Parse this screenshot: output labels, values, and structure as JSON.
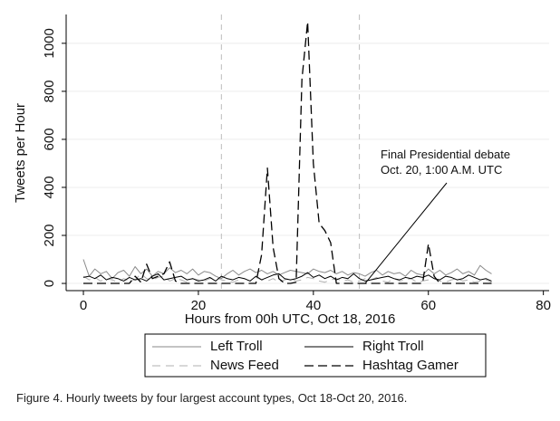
{
  "chart_data": {
    "type": "line",
    "xlabel": "Hours from 00h UTC, Oct 18, 2016",
    "ylabel": "Tweets per Hour",
    "xlim": [
      -3,
      81
    ],
    "ylim": [
      -30,
      1120
    ],
    "xticks": [
      0,
      20,
      40,
      60,
      80
    ],
    "yticks": [
      0,
      200,
      400,
      600,
      800,
      1000
    ],
    "grid": "horizontal",
    "vlines": [
      24,
      48
    ],
    "annotation": {
      "lines": [
        "Final Presidential debate",
        "Oct. 20, 1:00 A.M. UTC"
      ],
      "arrow_from": [
        64,
        410
      ],
      "arrow_to": [
        49,
        0
      ]
    },
    "legend": {
      "placement": "bottom",
      "columns": 2
    },
    "series": [
      {
        "name": "Left Troll",
        "color": "#8a8a8a",
        "dash": "solid",
        "x": [
          0,
          1,
          2,
          3,
          4,
          5,
          6,
          7,
          8,
          9,
          10,
          11,
          12,
          13,
          14,
          15,
          16,
          17,
          18,
          19,
          20,
          21,
          22,
          23,
          24,
          25,
          26,
          27,
          28,
          29,
          30,
          31,
          32,
          33,
          34,
          35,
          36,
          37,
          38,
          39,
          40,
          41,
          42,
          43,
          44,
          45,
          46,
          47,
          48,
          49,
          50,
          51,
          52,
          53,
          54,
          55,
          56,
          57,
          58,
          59,
          60,
          61,
          62,
          63,
          64,
          65,
          66,
          67,
          68,
          69,
          70,
          71
        ],
        "y": [
          100,
          30,
          60,
          40,
          50,
          20,
          45,
          55,
          30,
          70,
          40,
          60,
          30,
          50,
          40,
          65,
          45,
          55,
          40,
          60,
          35,
          50,
          45,
          30,
          20,
          40,
          55,
          35,
          50,
          60,
          45,
          55,
          40,
          50,
          35,
          45,
          55,
          50,
          45,
          40,
          60,
          50,
          45,
          55,
          40,
          50,
          35,
          45,
          40,
          30,
          45,
          55,
          35,
          50,
          40,
          45,
          30,
          55,
          40,
          35,
          60,
          40,
          55,
          35,
          45,
          60,
          40,
          50,
          35,
          75,
          55,
          40
        ]
      },
      {
        "name": "Right Troll",
        "color": "#000000",
        "dash": "solid",
        "x": [
          0,
          1,
          2,
          3,
          4,
          5,
          6,
          7,
          8,
          9,
          10,
          11,
          12,
          13,
          14,
          15,
          16,
          17,
          18,
          19,
          20,
          21,
          22,
          23,
          24,
          25,
          26,
          27,
          28,
          29,
          30,
          31,
          32,
          33,
          34,
          35,
          36,
          37,
          38,
          39,
          40,
          41,
          42,
          43,
          44,
          45,
          46,
          47,
          48,
          49,
          50,
          51,
          52,
          53,
          54,
          55,
          56,
          57,
          58,
          59,
          60,
          61,
          62,
          63,
          64,
          65,
          66,
          67,
          68,
          69,
          70,
          71
        ],
        "y": [
          25,
          30,
          20,
          35,
          15,
          25,
          20,
          10,
          25,
          15,
          20,
          10,
          30,
          40,
          15,
          20,
          25,
          30,
          15,
          20,
          10,
          15,
          25,
          10,
          30,
          20,
          15,
          25,
          20,
          10,
          30,
          15,
          25,
          35,
          40,
          20,
          15,
          20,
          30,
          45,
          25,
          35,
          20,
          30,
          15,
          25,
          20,
          40,
          20,
          10,
          15,
          20,
          25,
          30,
          20,
          15,
          25,
          20,
          30,
          25,
          35,
          20,
          15,
          30,
          25,
          15,
          20,
          35,
          25,
          15,
          20,
          10
        ]
      },
      {
        "name": "News Feed",
        "color": "#b0b0b0",
        "dash": "dashed",
        "x": [
          0,
          1,
          2,
          3,
          4,
          5,
          6,
          7,
          8,
          9,
          10,
          11,
          12,
          13,
          14,
          15,
          16,
          17,
          18,
          19,
          20,
          21,
          22,
          23,
          24,
          25,
          26,
          27,
          28,
          29,
          30,
          31,
          32,
          33,
          34,
          35,
          36,
          37,
          38,
          39,
          40,
          41,
          42,
          43,
          44,
          45,
          46,
          47,
          48,
          49,
          50,
          51,
          52,
          53,
          54,
          55,
          56,
          57,
          58,
          59,
          60,
          61,
          62,
          63,
          64,
          65,
          66,
          67,
          68,
          69,
          70,
          71
        ],
        "y": [
          30,
          15,
          25,
          10,
          20,
          15,
          5,
          20,
          10,
          15,
          40,
          20,
          15,
          25,
          30,
          10,
          20,
          15,
          5,
          20,
          15,
          10,
          20,
          25,
          15,
          10,
          5,
          15,
          20,
          10,
          25,
          15,
          10,
          20,
          5,
          15,
          20,
          10,
          15,
          25,
          20,
          10,
          5,
          15,
          20,
          10,
          15,
          5,
          10,
          20,
          15,
          25,
          10,
          5,
          20,
          10,
          15,
          20,
          5,
          10,
          15,
          20,
          10,
          5,
          15,
          20,
          10,
          15,
          5,
          10,
          15,
          5
        ]
      },
      {
        "name": "Hashtag Gamer",
        "color": "#000000",
        "dash": "longdash",
        "x": [
          0,
          1,
          2,
          3,
          4,
          5,
          6,
          7,
          8,
          9,
          10,
          11,
          12,
          13,
          14,
          15,
          16,
          17,
          18,
          19,
          20,
          21,
          22,
          23,
          24,
          25,
          26,
          27,
          28,
          29,
          30,
          31,
          32,
          33,
          34,
          35,
          36,
          37,
          38,
          39,
          40,
          41,
          42,
          43,
          44,
          45,
          46,
          47,
          48,
          49,
          50,
          51,
          52,
          53,
          54,
          55,
          56,
          57,
          58,
          59,
          60,
          61,
          62,
          63,
          64,
          65,
          66,
          67,
          68,
          69,
          70,
          71
        ],
        "y": [
          0,
          0,
          0,
          0,
          0,
          0,
          0,
          0,
          0,
          30,
          5,
          80,
          20,
          30,
          40,
          90,
          10,
          0,
          0,
          0,
          0,
          0,
          0,
          0,
          0,
          0,
          0,
          0,
          0,
          0,
          0,
          120,
          480,
          150,
          20,
          0,
          0,
          5,
          850,
          1090,
          500,
          250,
          220,
          170,
          0,
          0,
          0,
          0,
          0,
          0,
          0,
          0,
          0,
          0,
          0,
          0,
          0,
          0,
          0,
          0,
          165,
          30,
          0,
          0,
          0,
          0,
          0,
          0,
          0,
          0,
          0,
          0
        ]
      }
    ]
  },
  "caption": "Figure 4. Hourly tweets by four largest account types, Oct 18-Oct 20, 2016."
}
